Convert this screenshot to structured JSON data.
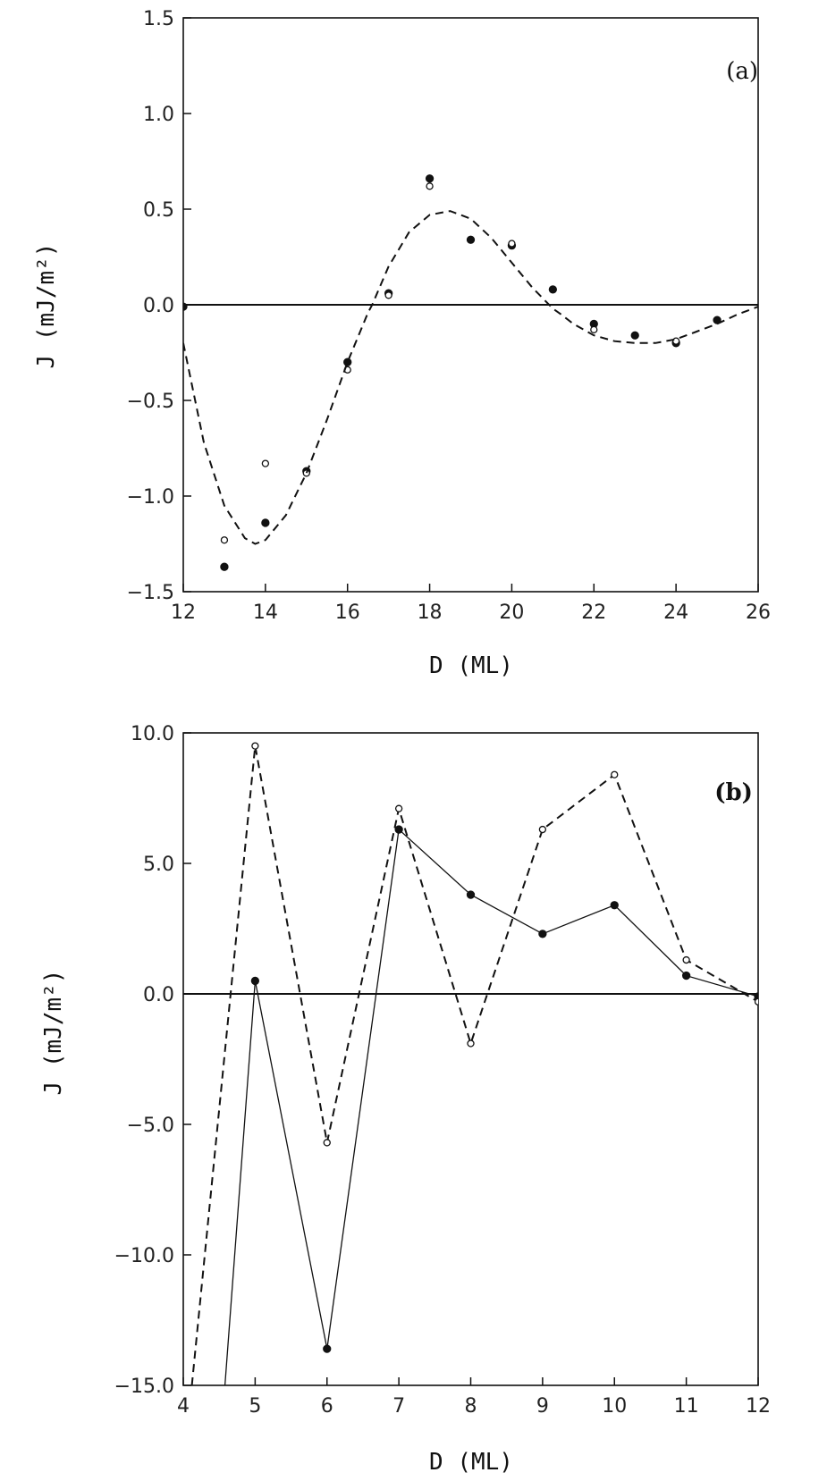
{
  "chart_data": [
    {
      "type": "scatter",
      "panel_label": "(a)",
      "xlabel": "D (ML)",
      "ylabel": "J (mJ/m²)",
      "xlim": [
        12,
        26
      ],
      "ylim": [
        -1.5,
        1.5
      ],
      "xticks": [
        12,
        14,
        16,
        18,
        20,
        22,
        24,
        26
      ],
      "xtick_labels": [
        "12",
        "14",
        "16",
        "18",
        "20",
        "22",
        "24",
        "26"
      ],
      "yticks": [
        -1.5,
        -1.0,
        -0.5,
        0.0,
        0.5,
        1.0,
        1.5
      ],
      "ytick_labels": [
        "−1.5",
        "−1.0",
        "−0.5",
        "0.0",
        "0.5",
        "1.0",
        "1.5"
      ],
      "zero_line": true,
      "grid": false,
      "series": [
        {
          "marker": "filled-circle",
          "line": "none",
          "x": [
            12,
            13,
            14,
            15,
            16,
            17,
            18,
            19,
            20,
            21,
            22,
            23,
            24,
            25
          ],
          "y": [
            -0.01,
            -1.37,
            -1.14,
            -0.87,
            -0.3,
            0.06,
            0.66,
            0.34,
            0.31,
            0.08,
            -0.1,
            -0.16,
            -0.2,
            -0.08
          ]
        },
        {
          "marker": "open-circle",
          "line": "none",
          "x": [
            13,
            14,
            15,
            16,
            17,
            18,
            20,
            22,
            24
          ],
          "y": [
            -1.23,
            -0.83,
            -0.88,
            -0.34,
            0.05,
            0.62,
            0.32,
            -0.13,
            -0.19
          ]
        },
        {
          "marker": "none",
          "line": "dashed",
          "x": [
            12.0,
            12.5,
            13.0,
            13.5,
            13.75,
            14.0,
            14.5,
            15.0,
            15.5,
            16.0,
            16.5,
            16.6,
            17.0,
            17.5,
            18.0,
            18.5,
            19.0,
            19.5,
            20.0,
            20.5,
            21.0,
            21.2,
            21.5,
            22.0,
            22.5,
            23.0,
            23.5,
            24.0,
            24.5,
            25.0,
            25.5,
            26.0
          ],
          "y": [
            -0.2,
            -0.72,
            -1.05,
            -1.22,
            -1.25,
            -1.23,
            -1.1,
            -0.88,
            -0.6,
            -0.3,
            -0.04,
            0.0,
            0.2,
            0.38,
            0.47,
            0.49,
            0.45,
            0.35,
            0.22,
            0.09,
            -0.02,
            -0.05,
            -0.1,
            -0.16,
            -0.19,
            -0.2,
            -0.2,
            -0.18,
            -0.14,
            -0.1,
            -0.05,
            -0.01
          ]
        }
      ]
    },
    {
      "type": "line",
      "panel_label": "(b)",
      "xlabel": "D (ML)",
      "ylabel": "J (mJ/m²)",
      "xlim": [
        4,
        12
      ],
      "ylim": [
        -15,
        10
      ],
      "xticks": [
        4,
        5,
        6,
        7,
        8,
        9,
        10,
        11,
        12
      ],
      "xtick_labels": [
        "4",
        "5",
        "6",
        "7",
        "8",
        "9",
        "10",
        "11",
        "12"
      ],
      "yticks": [
        -15,
        -10,
        -5,
        0,
        5,
        10
      ],
      "ytick_labels": [
        "−15.0",
        "−10.0",
        "−5.0",
        "0.0",
        "5.0",
        "10.0"
      ],
      "zero_line": true,
      "grid": false,
      "series": [
        {
          "marker": "filled-circle",
          "line": "solid",
          "x": [
            4.58,
            5,
            6,
            7,
            8,
            9,
            10,
            11,
            12
          ],
          "y": [
            -15,
            0.5,
            -13.6,
            6.3,
            3.8,
            2.3,
            3.4,
            0.7,
            -0.1
          ],
          "marked": [
            false,
            true,
            true,
            true,
            true,
            true,
            true,
            true,
            true
          ]
        },
        {
          "marker": "open-circle",
          "line": "dashed",
          "x": [
            4.12,
            5,
            6,
            7,
            8,
            9,
            10,
            11,
            12
          ],
          "y": [
            -15,
            9.5,
            -5.7,
            7.1,
            -1.9,
            6.3,
            8.4,
            1.3,
            -0.3
          ],
          "marked": [
            false,
            true,
            true,
            true,
            true,
            true,
            true,
            true,
            true
          ]
        }
      ]
    }
  ]
}
